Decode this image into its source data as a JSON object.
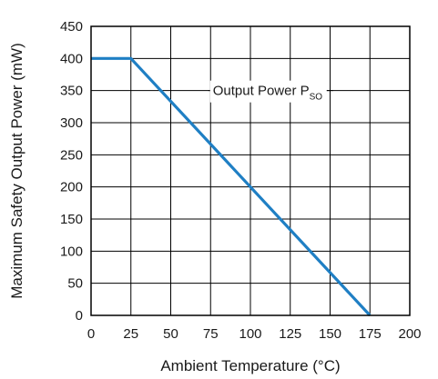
{
  "chart_data": {
    "type": "line",
    "title": "",
    "xlabel": "Ambient Temperature (°C)",
    "ylabel": "Maximum Safety Output Power (mW)",
    "xlim": [
      0,
      200
    ],
    "ylim": [
      0,
      450
    ],
    "x_ticks": [
      "0",
      "25",
      "50",
      "75",
      "100",
      "125",
      "150",
      "175",
      "200"
    ],
    "y_ticks": [
      "0",
      "50",
      "100",
      "150",
      "200",
      "250",
      "300",
      "350",
      "400",
      "450"
    ],
    "grid": true,
    "series": [
      {
        "name": "",
        "color": "#1f7fc4",
        "x": [
          0,
          25,
          175
        ],
        "y": [
          400,
          400,
          0
        ]
      }
    ],
    "annotation": {
      "text": "Output Power P",
      "subscript": "SO",
      "anchor_x": 125,
      "anchor_y": 350
    }
  }
}
